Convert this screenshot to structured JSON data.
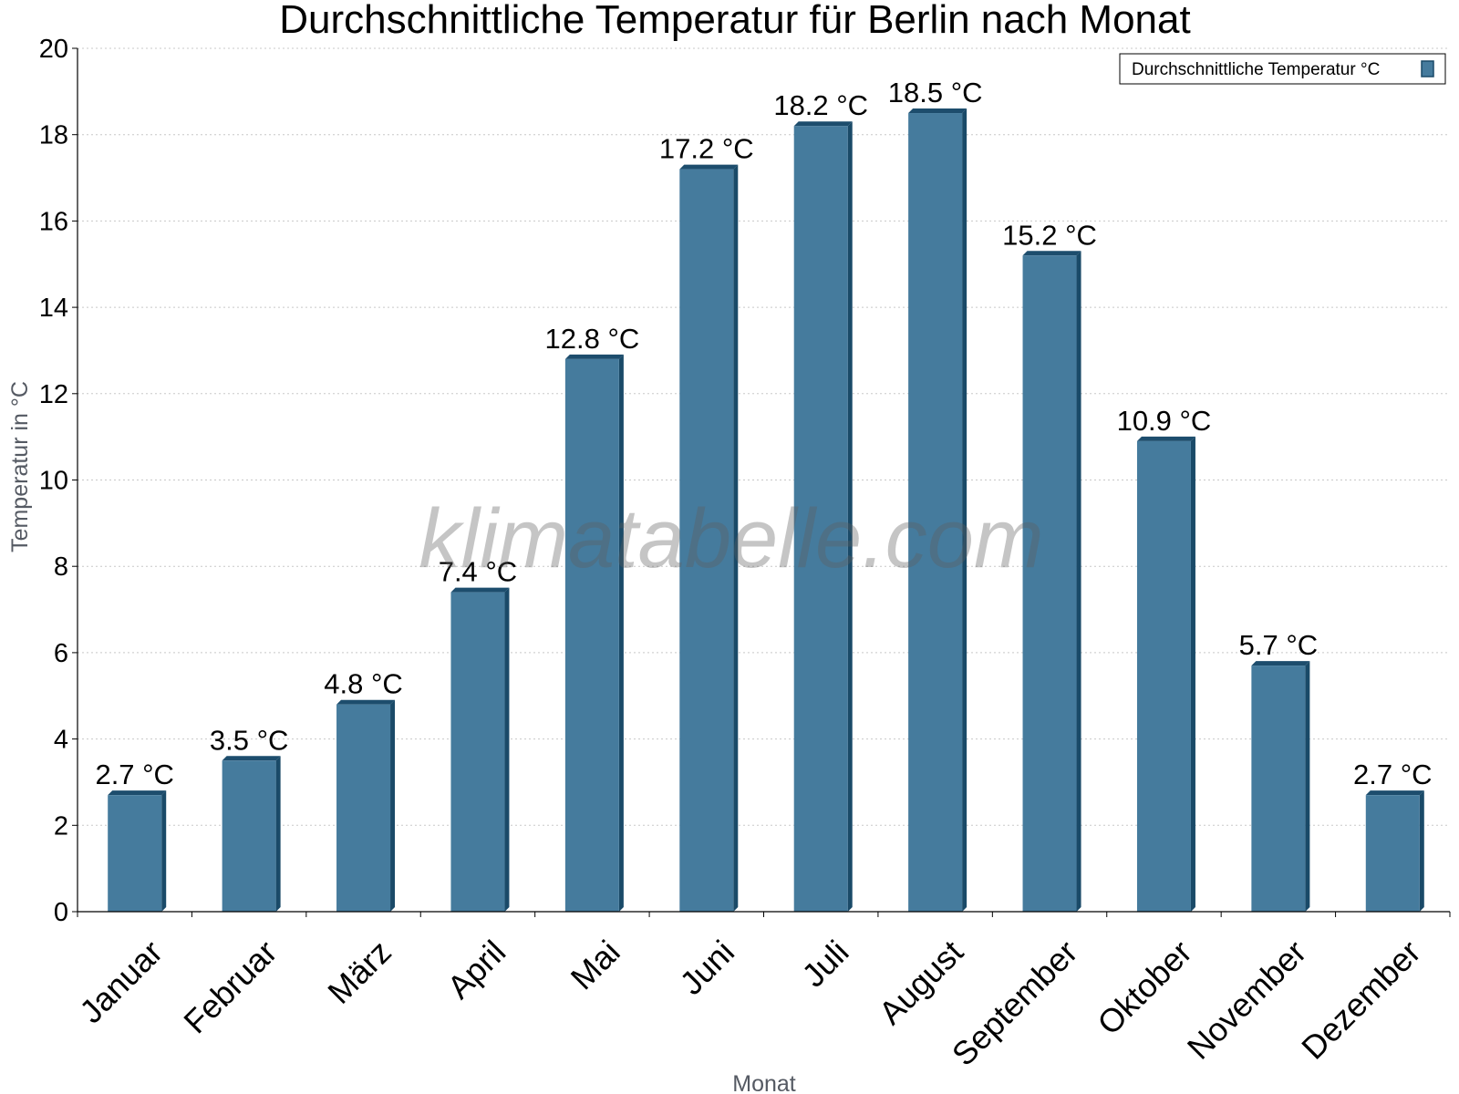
{
  "watermark": "klimatabelle.com",
  "chart_data": {
    "type": "bar",
    "title": "Durchschnittliche Temperatur für Berlin nach Monat",
    "xlabel": "Monat",
    "ylabel": "Temperatur in °C",
    "categories": [
      "Januar",
      "Februar",
      "März",
      "April",
      "Mai",
      "Juni",
      "Juli",
      "August",
      "September",
      "Oktober",
      "November",
      "Dezember"
    ],
    "series": [
      {
        "name": "Durchschnittliche Temperatur °C",
        "values": [
          2.7,
          3.5,
          4.8,
          7.4,
          12.8,
          17.2,
          18.2,
          18.5,
          15.2,
          10.9,
          5.7,
          2.7
        ],
        "labels": [
          "2.7 °C",
          "3.5 °C",
          "4.8 °C",
          "7.4 °C",
          "12.8 °C",
          "17.2 °C",
          "18.2 °C",
          "18.5 °C",
          "15.2 °C",
          "10.9 °C",
          "5.7 °C",
          "2.7 °C"
        ]
      }
    ],
    "ylim": [
      0,
      20
    ],
    "yticks": [
      0,
      2,
      4,
      6,
      8,
      10,
      12,
      14,
      16,
      18,
      20
    ],
    "grid": true,
    "legend_position": "top-right",
    "colors": {
      "bar": "#457b9d",
      "bar_top": "#1d4d6d",
      "bar_side": "#1a4a68",
      "grid": "#c8c8c8",
      "axis": "#000000"
    }
  }
}
